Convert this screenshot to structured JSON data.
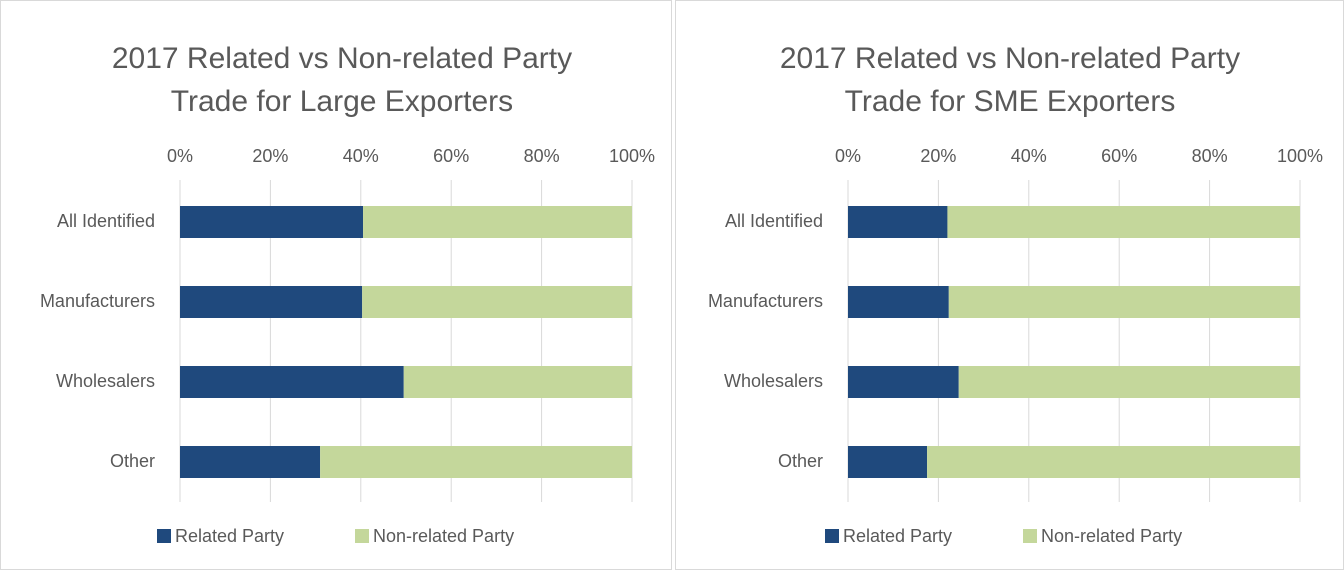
{
  "chart_data": [
    {
      "type": "bar",
      "stacked": true,
      "title": [
        "2017 Related vs Non-related Party",
        "Trade for Large Exporters"
      ],
      "categories": [
        "All Identified",
        "Manufacturers",
        "Wholesalers",
        "Other"
      ],
      "series": [
        {
          "name": "Related Party",
          "color": "#1f497d",
          "values": [
            40.5,
            40.3,
            49.5,
            31
          ]
        },
        {
          "name": "Non-related Party",
          "color": "#c4d79b",
          "values": [
            59.5,
            59.7,
            50.5,
            69
          ]
        }
      ],
      "xlim": [
        0,
        100
      ],
      "xticks": [
        {
          "value": 0,
          "label": "0%"
        },
        {
          "value": 20,
          "label": "20%"
        },
        {
          "value": 40,
          "label": "40%"
        },
        {
          "value": 60,
          "label": "60%"
        },
        {
          "value": 80,
          "label": "80%"
        },
        {
          "value": 100,
          "label": "100%"
        }
      ],
      "grid": true,
      "legend": "bottom"
    },
    {
      "type": "bar",
      "stacked": true,
      "title": [
        "2017 Related vs Non-related Party",
        "Trade for SME Exporters"
      ],
      "categories": [
        "All Identified",
        "Manufacturers",
        "Wholesalers",
        "Other"
      ],
      "series": [
        {
          "name": "Related Party",
          "color": "#1f497d",
          "values": [
            22,
            22.3,
            24.5,
            17.5
          ]
        },
        {
          "name": "Non-related Party",
          "color": "#c4d79b",
          "values": [
            78,
            77.7,
            75.5,
            82.5
          ]
        }
      ],
      "xlim": [
        0,
        100
      ],
      "xticks": [
        {
          "value": 0,
          "label": "0%"
        },
        {
          "value": 20,
          "label": "20%"
        },
        {
          "value": 40,
          "label": "40%"
        },
        {
          "value": 60,
          "label": "60%"
        },
        {
          "value": 80,
          "label": "80%"
        },
        {
          "value": 100,
          "label": "100%"
        }
      ],
      "grid": true,
      "legend": "bottom"
    }
  ]
}
